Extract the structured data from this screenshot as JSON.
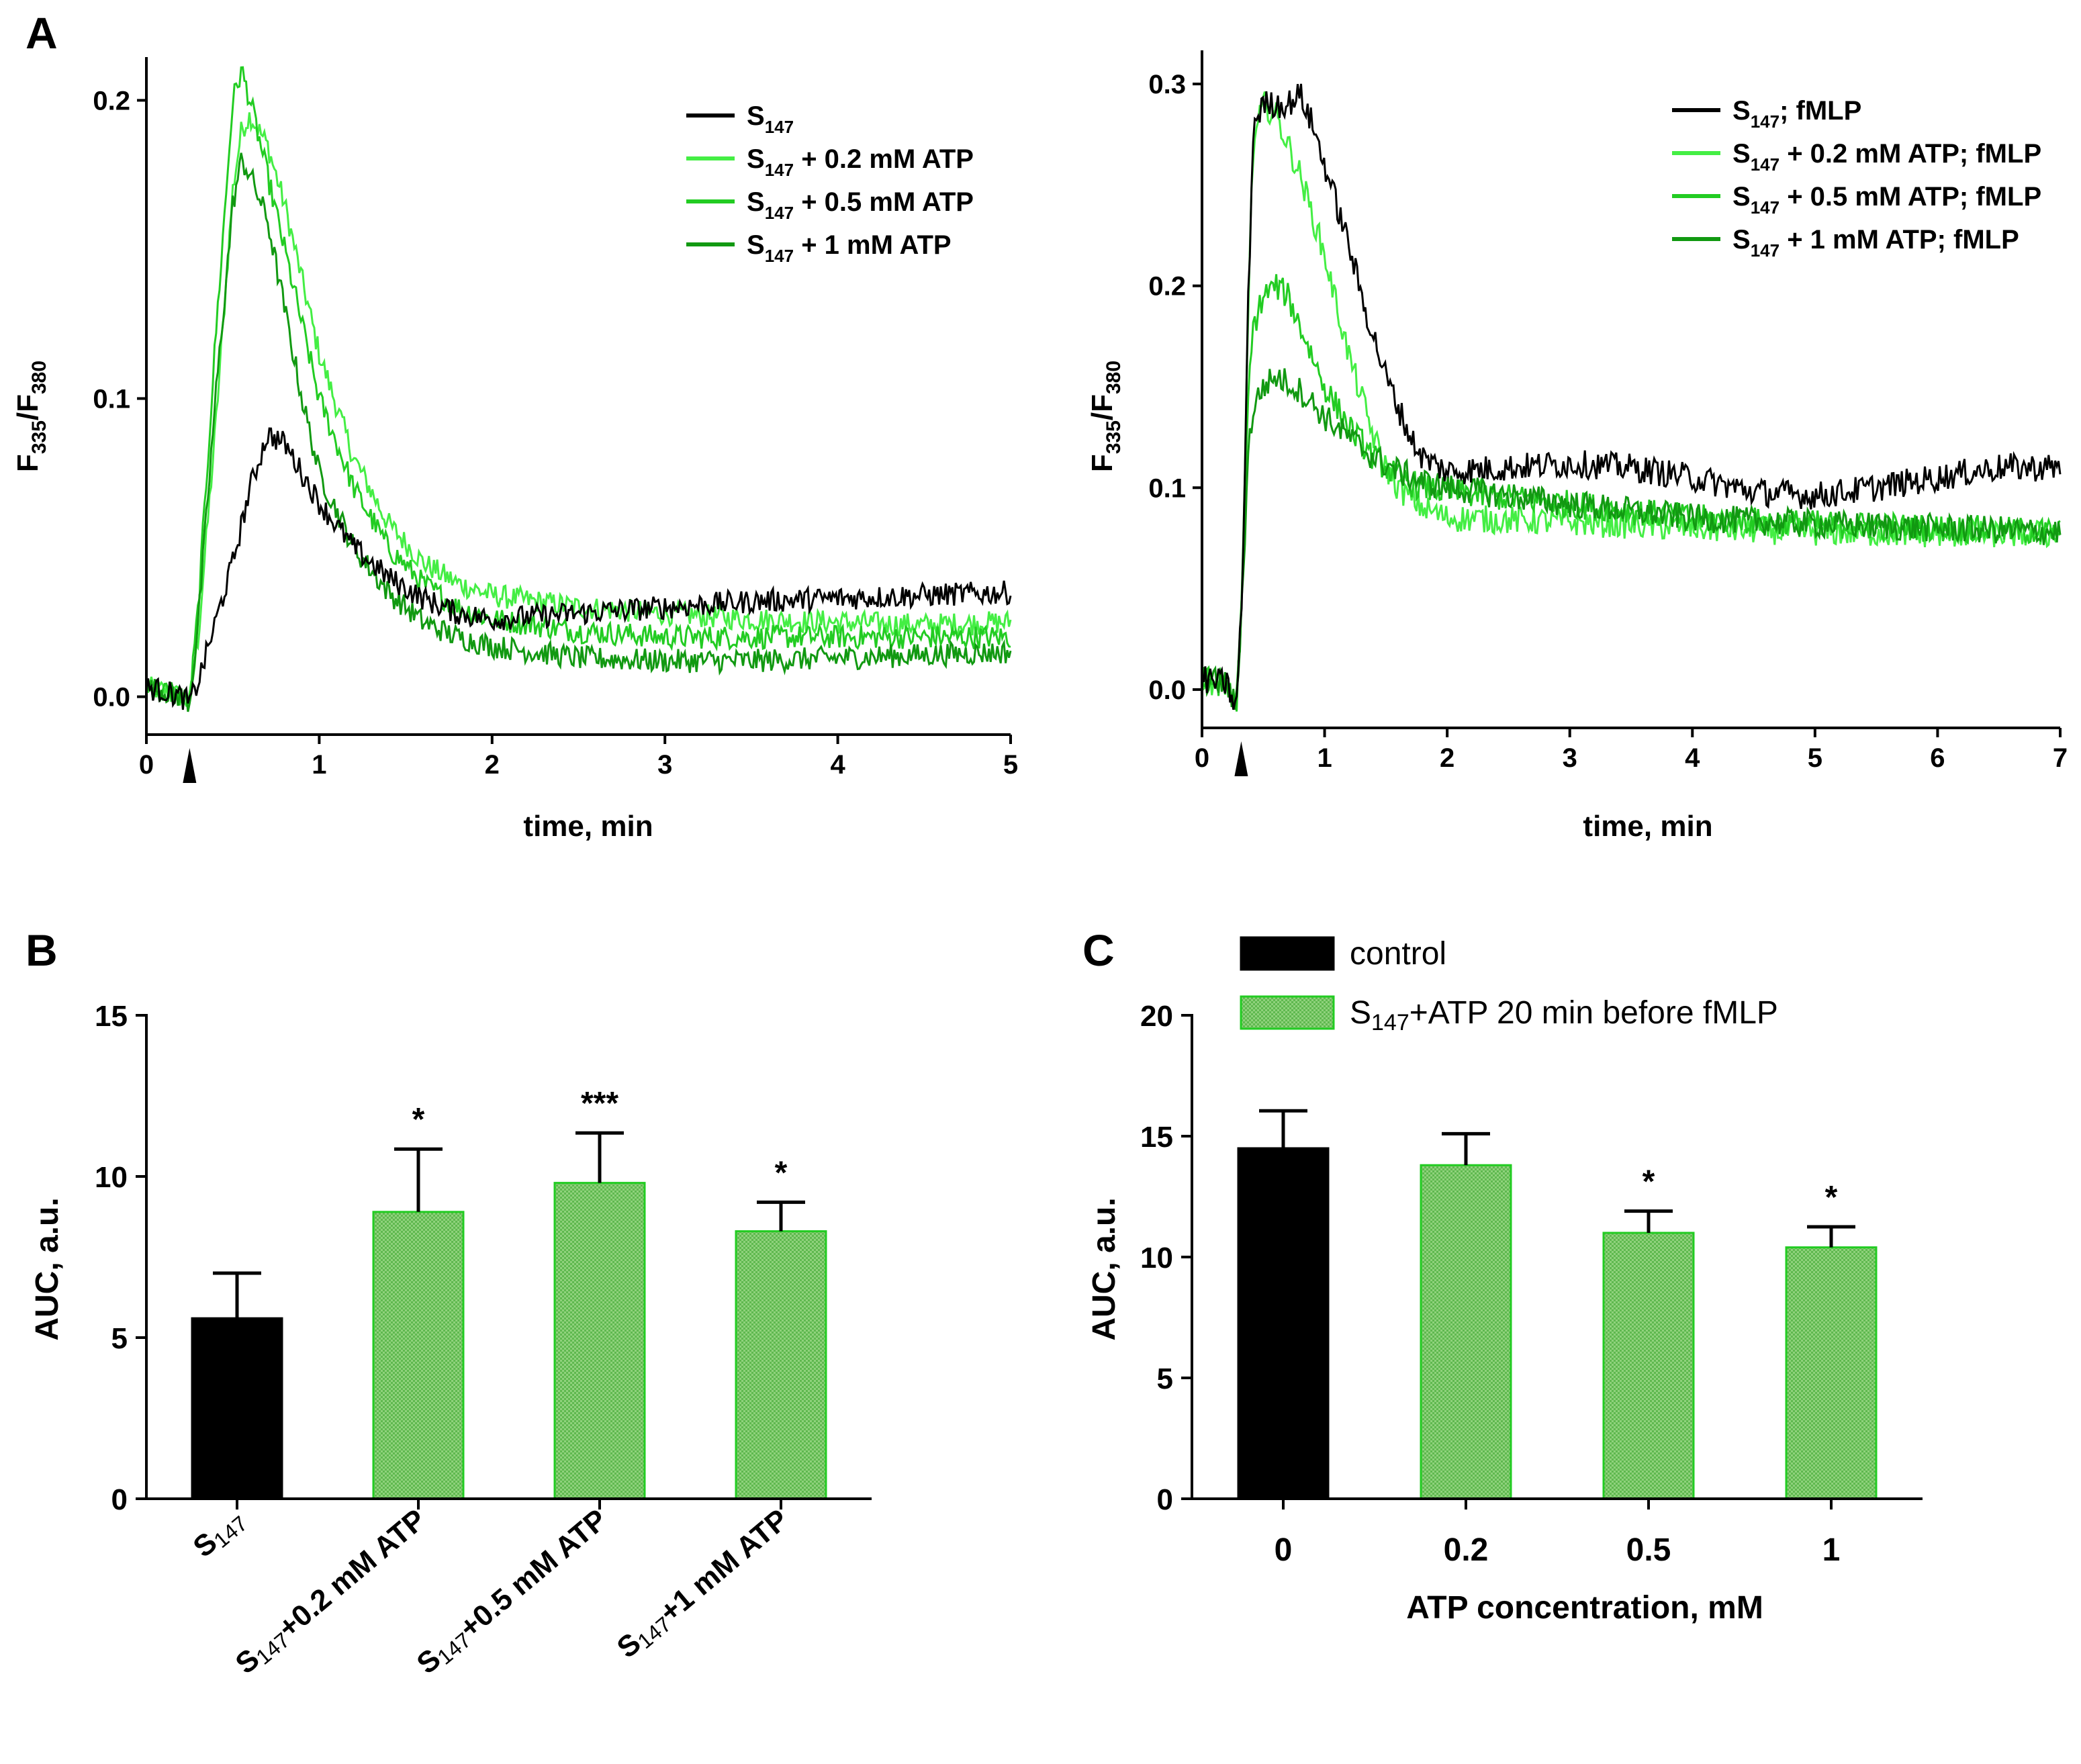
{
  "panel_labels": {
    "a": "A",
    "b": "B",
    "c": "C"
  },
  "colors": {
    "black": "#000000",
    "green1": "#44ee44",
    "green2": "#22cc22",
    "green3": "#119911",
    "green_fill": "#77cc66",
    "green_edge": "#22cc22"
  },
  "chart_data": [
    {
      "id": "A-left",
      "type": "line",
      "title": "",
      "xlabel": "time, min",
      "ylabel_main": "F",
      "ylabel_sub1": "335",
      "ylabel_mid": "/F",
      "ylabel_sub2": "380",
      "xlim": [
        0,
        5
      ],
      "ylim": [
        -0.01,
        0.21
      ],
      "xticks": [
        "0",
        "1",
        "2",
        "3",
        "4",
        "5"
      ],
      "yticks": [
        "0.0",
        "0.1",
        "0.2"
      ],
      "marker_x": 0.25,
      "series": [
        {
          "name": "S147",
          "label_main": "S",
          "label_sub": "147",
          "label_rest": "",
          "color": "#000000",
          "points": [
            [
              0,
              0.003
            ],
            [
              0.1,
              0.002
            ],
            [
              0.2,
              0.0
            ],
            [
              0.25,
              -0.002
            ],
            [
              0.3,
              0.005
            ],
            [
              0.4,
              0.025
            ],
            [
              0.5,
              0.045
            ],
            [
              0.6,
              0.07
            ],
            [
              0.7,
              0.088
            ],
            [
              0.8,
              0.085
            ],
            [
              0.9,
              0.075
            ],
            [
              1.0,
              0.065
            ],
            [
              1.2,
              0.05
            ],
            [
              1.4,
              0.04
            ],
            [
              1.6,
              0.033
            ],
            [
              1.8,
              0.028
            ],
            [
              2.0,
              0.026
            ],
            [
              2.5,
              0.028
            ],
            [
              3,
              0.03
            ],
            [
              3.5,
              0.032
            ],
            [
              4,
              0.033
            ],
            [
              4.5,
              0.034
            ],
            [
              5,
              0.035
            ]
          ]
        },
        {
          "name": "S147 + 0.2 mM ATP",
          "label_main": "S",
          "label_sub": "147",
          "label_rest": " + 0.2 mM ATP",
          "color": "#44ee44",
          "points": [
            [
              0,
              0.003
            ],
            [
              0.1,
              0.002
            ],
            [
              0.2,
              0.0
            ],
            [
              0.25,
              -0.002
            ],
            [
              0.3,
              0.02
            ],
            [
              0.4,
              0.09
            ],
            [
              0.5,
              0.17
            ],
            [
              0.55,
              0.19
            ],
            [
              0.6,
              0.195
            ],
            [
              0.7,
              0.185
            ],
            [
              0.8,
              0.165
            ],
            [
              0.9,
              0.14
            ],
            [
              1.0,
              0.115
            ],
            [
              1.2,
              0.08
            ],
            [
              1.4,
              0.058
            ],
            [
              1.6,
              0.045
            ],
            [
              1.8,
              0.038
            ],
            [
              2.0,
              0.034
            ],
            [
              2.5,
              0.03
            ],
            [
              3,
              0.028
            ],
            [
              3.5,
              0.026
            ],
            [
              4,
              0.025
            ],
            [
              4.5,
              0.024
            ],
            [
              5,
              0.025
            ]
          ]
        },
        {
          "name": "S147 + 0.5 mM ATP",
          "label_main": "S",
          "label_sub": "147",
          "label_rest": " + 0.5 mM ATP",
          "color": "#22cc22",
          "points": [
            [
              0,
              0.003
            ],
            [
              0.1,
              0.002
            ],
            [
              0.2,
              0.0
            ],
            [
              0.25,
              -0.002
            ],
            [
              0.3,
              0.03
            ],
            [
              0.4,
              0.12
            ],
            [
              0.5,
              0.2
            ],
            [
              0.55,
              0.21
            ],
            [
              0.6,
              0.2
            ],
            [
              0.7,
              0.175
            ],
            [
              0.8,
              0.15
            ],
            [
              0.9,
              0.125
            ],
            [
              1.0,
              0.1
            ],
            [
              1.2,
              0.07
            ],
            [
              1.4,
              0.05
            ],
            [
              1.6,
              0.038
            ],
            [
              1.8,
              0.03
            ],
            [
              2.0,
              0.026
            ],
            [
              2.5,
              0.022
            ],
            [
              3,
              0.02
            ],
            [
              3.5,
              0.02
            ],
            [
              4,
              0.02
            ],
            [
              4.5,
              0.02
            ],
            [
              5,
              0.02
            ]
          ]
        },
        {
          "name": "S147 + 1 mM ATP",
          "label_main": "S",
          "label_sub": "147",
          "label_rest": " + 1 mM ATP",
          "color": "#119911",
          "points": [
            [
              0,
              0.003
            ],
            [
              0.1,
              0.002
            ],
            [
              0.2,
              0.0
            ],
            [
              0.25,
              -0.002
            ],
            [
              0.3,
              0.025
            ],
            [
              0.4,
              0.1
            ],
            [
              0.5,
              0.165
            ],
            [
              0.55,
              0.18
            ],
            [
              0.6,
              0.175
            ],
            [
              0.7,
              0.16
            ],
            [
              0.8,
              0.13
            ],
            [
              0.9,
              0.1
            ],
            [
              1.0,
              0.075
            ],
            [
              1.2,
              0.05
            ],
            [
              1.4,
              0.035
            ],
            [
              1.6,
              0.025
            ],
            [
              1.8,
              0.02
            ],
            [
              2.0,
              0.017
            ],
            [
              2.5,
              0.013
            ],
            [
              3,
              0.012
            ],
            [
              3.5,
              0.012
            ],
            [
              4,
              0.013
            ],
            [
              4.5,
              0.014
            ],
            [
              5,
              0.015
            ]
          ]
        }
      ]
    },
    {
      "id": "A-right",
      "type": "line",
      "title": "",
      "xlabel": "time, min",
      "ylabel_main": "F",
      "ylabel_sub1": "335",
      "ylabel_mid": "/F",
      "ylabel_sub2": "380",
      "xlim": [
        0,
        7
      ],
      "ylim": [
        -0.015,
        0.31
      ],
      "xticks": [
        "0",
        "1",
        "2",
        "3",
        "4",
        "5",
        "6",
        "7"
      ],
      "yticks": [
        "0.0",
        "0.1",
        "0.2",
        "0.3"
      ],
      "marker_x": 0.32,
      "series": [
        {
          "name": "S147; fMLP",
          "label_main": "S",
          "label_sub": "147",
          "label_rest": "; fMLP",
          "color": "#000000",
          "points": [
            [
              0,
              0.005
            ],
            [
              0.2,
              0.003
            ],
            [
              0.28,
              -0.01
            ],
            [
              0.33,
              0.05
            ],
            [
              0.38,
              0.2
            ],
            [
              0.42,
              0.28
            ],
            [
              0.5,
              0.29
            ],
            [
              0.6,
              0.29
            ],
            [
              0.7,
              0.29
            ],
            [
              0.8,
              0.295
            ],
            [
              0.9,
              0.28
            ],
            [
              1.0,
              0.26
            ],
            [
              1.1,
              0.24
            ],
            [
              1.2,
              0.22
            ],
            [
              1.3,
              0.195
            ],
            [
              1.4,
              0.175
            ],
            [
              1.5,
              0.155
            ],
            [
              1.6,
              0.14
            ],
            [
              1.7,
              0.125
            ],
            [
              1.8,
              0.115
            ],
            [
              2.0,
              0.108
            ],
            [
              2.5,
              0.11
            ],
            [
              3,
              0.112
            ],
            [
              3.5,
              0.11
            ],
            [
              4,
              0.105
            ],
            [
              4.5,
              0.098
            ],
            [
              5,
              0.096
            ],
            [
              5.5,
              0.1
            ],
            [
              6,
              0.105
            ],
            [
              6.5,
              0.11
            ],
            [
              7,
              0.11
            ]
          ]
        },
        {
          "name": "S147 + 0.2 mM ATP; fMLP",
          "label_main": "S",
          "label_sub": "147",
          "label_rest": " + 0.2 mM ATP; fMLP",
          "color": "#44ee44",
          "points": [
            [
              0,
              0.005
            ],
            [
              0.2,
              0.003
            ],
            [
              0.28,
              -0.01
            ],
            [
              0.33,
              0.05
            ],
            [
              0.38,
              0.2
            ],
            [
              0.42,
              0.27
            ],
            [
              0.5,
              0.29
            ],
            [
              0.6,
              0.285
            ],
            [
              0.7,
              0.27
            ],
            [
              0.8,
              0.255
            ],
            [
              0.9,
              0.235
            ],
            [
              1.0,
              0.215
            ],
            [
              1.1,
              0.19
            ],
            [
              1.2,
              0.165
            ],
            [
              1.3,
              0.145
            ],
            [
              1.4,
              0.125
            ],
            [
              1.5,
              0.11
            ],
            [
              1.6,
              0.1
            ],
            [
              1.8,
              0.09
            ],
            [
              2.0,
              0.085
            ],
            [
              3,
              0.083
            ],
            [
              4,
              0.08
            ],
            [
              5,
              0.078
            ],
            [
              6,
              0.077
            ],
            [
              7,
              0.077
            ]
          ]
        },
        {
          "name": "S147 + 0.5 mM ATP; fMLP",
          "label_main": "S",
          "label_sub": "147",
          "label_rest": " + 0.5 mM ATP; fMLP",
          "color": "#22cc22",
          "points": [
            [
              0,
              0.005
            ],
            [
              0.2,
              0.003
            ],
            [
              0.28,
              -0.01
            ],
            [
              0.33,
              0.05
            ],
            [
              0.38,
              0.15
            ],
            [
              0.42,
              0.18
            ],
            [
              0.5,
              0.195
            ],
            [
              0.6,
              0.2
            ],
            [
              0.7,
              0.195
            ],
            [
              0.8,
              0.18
            ],
            [
              0.9,
              0.165
            ],
            [
              1.0,
              0.15
            ],
            [
              1.2,
              0.13
            ],
            [
              1.4,
              0.115
            ],
            [
              1.6,
              0.105
            ],
            [
              1.8,
              0.1
            ],
            [
              2.0,
              0.098
            ],
            [
              3,
              0.092
            ],
            [
              4,
              0.085
            ],
            [
              5,
              0.082
            ],
            [
              6,
              0.08
            ],
            [
              7,
              0.078
            ]
          ]
        },
        {
          "name": "S147 + 1 mM ATP; fMLP",
          "label_main": "S",
          "label_sub": "147",
          "label_rest": " + 1 mM ATP; fMLP",
          "color": "#119911",
          "points": [
            [
              0,
              0.005
            ],
            [
              0.2,
              0.003
            ],
            [
              0.28,
              -0.01
            ],
            [
              0.33,
              0.05
            ],
            [
              0.38,
              0.12
            ],
            [
              0.42,
              0.14
            ],
            [
              0.5,
              0.15
            ],
            [
              0.6,
              0.155
            ],
            [
              0.7,
              0.152
            ],
            [
              0.8,
              0.148
            ],
            [
              0.9,
              0.142
            ],
            [
              1.0,
              0.135
            ],
            [
              1.2,
              0.125
            ],
            [
              1.4,
              0.115
            ],
            [
              1.6,
              0.108
            ],
            [
              1.8,
              0.103
            ],
            [
              2.0,
              0.1
            ],
            [
              3,
              0.092
            ],
            [
              4,
              0.085
            ],
            [
              5,
              0.082
            ],
            [
              6,
              0.08
            ],
            [
              7,
              0.078
            ]
          ]
        }
      ]
    },
    {
      "id": "B",
      "type": "bar",
      "ylabel": "AUC, a.u.",
      "ylim": [
        0,
        15
      ],
      "yticks": [
        "0",
        "5",
        "10",
        "15"
      ],
      "categories": [
        {
          "main": "S",
          "sub": "147",
          "rest": ""
        },
        {
          "main": "S",
          "sub": "147",
          "rest": "+0.2 mM ATP"
        },
        {
          "main": "S",
          "sub": "147",
          "rest": "+0.5 mM ATP"
        },
        {
          "main": "S",
          "sub": "147",
          "rest": "+1 mM ATP"
        }
      ],
      "values": [
        5.6,
        8.9,
        9.8,
        8.3
      ],
      "errors": [
        1.4,
        1.95,
        1.55,
        0.9
      ],
      "significance": [
        "",
        "*",
        "***",
        "*"
      ],
      "fills": [
        "black",
        "pattern",
        "pattern",
        "pattern"
      ]
    },
    {
      "id": "C",
      "type": "bar",
      "xlabel": "ATP concentration, mM",
      "ylabel": "AUC, a.u.",
      "ylim": [
        0,
        20
      ],
      "yticks": [
        "0",
        "5",
        "10",
        "15",
        "20"
      ],
      "categories": [
        "0",
        "0.2",
        "0.5",
        "1"
      ],
      "values": [
        14.5,
        13.8,
        11.0,
        10.4
      ],
      "errors": [
        1.55,
        1.3,
        0.9,
        0.85
      ],
      "significance": [
        "",
        "",
        "*",
        "*"
      ],
      "fills": [
        "black",
        "pattern",
        "pattern",
        "pattern"
      ],
      "legend": [
        {
          "main": "control",
          "sub": "",
          "rest": "",
          "fill": "black"
        },
        {
          "main": "S",
          "sub": "147",
          "rest": "+ATP 20 min before  fMLP",
          "fill": "pattern"
        }
      ]
    }
  ]
}
